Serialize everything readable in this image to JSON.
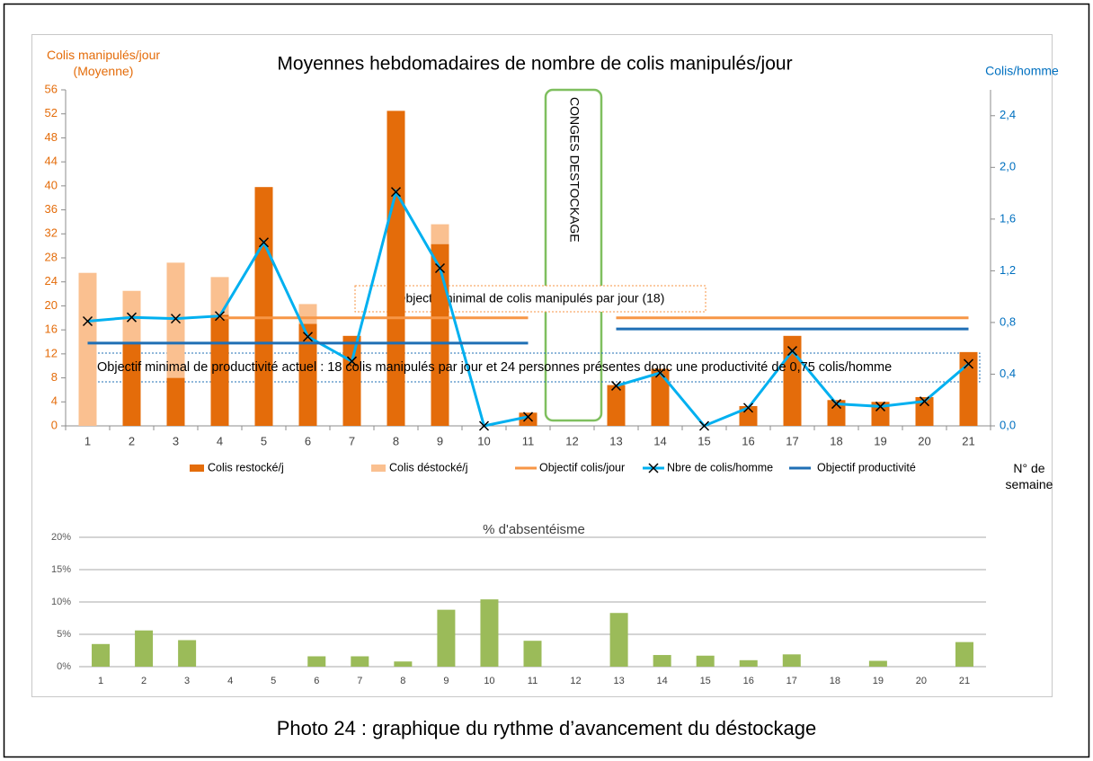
{
  "chart_data": [
    {
      "type": "bar",
      "title": "Moyennes hebdomadaires de nombre de colis manipulés/jour",
      "ylabel": "Colis manipulés/jour (Moyenne)",
      "y2label": "Colis/homme",
      "xlabel": "N° de semaine",
      "ytick_color": "#e46c0a",
      "y2tick_color": "#0070c0",
      "categories": [
        "1",
        "2",
        "3",
        "4",
        "5",
        "6",
        "7",
        "8",
        "9",
        "10",
        "11",
        "12",
        "13",
        "14",
        "15",
        "16",
        "17",
        "18",
        "19",
        "20",
        "21"
      ],
      "ylim": [
        0,
        56
      ],
      "yticks": [
        0,
        4,
        8,
        12,
        16,
        20,
        24,
        28,
        32,
        36,
        40,
        44,
        48,
        52,
        56
      ],
      "y2lim": [
        0,
        2.6
      ],
      "y2ticks": [
        {
          "value": 0,
          "label": "0,0"
        },
        {
          "value": 0.4,
          "label": "0,4"
        },
        {
          "value": 0.8,
          "label": "0,8"
        },
        {
          "value": 1.2,
          "label": "1,2"
        },
        {
          "value": 1.6,
          "label": "1,6"
        },
        {
          "value": 2.0,
          "label": "2,0"
        },
        {
          "value": 2.4,
          "label": "2,4"
        }
      ],
      "series": [
        {
          "name": "Colis restocké/j",
          "type": "bar",
          "color": "#e46c0a",
          "values": [
            0,
            14,
            8,
            18.5,
            39.8,
            17,
            15,
            52.5,
            30.3,
            0,
            2.2,
            null,
            6.8,
            9.5,
            0,
            3.3,
            15,
            4.3,
            4,
            4.8,
            12.3
          ]
        },
        {
          "name": "Colis déstocké/j",
          "type": "bar",
          "color": "#fac090",
          "values": [
            25.5,
            8.5,
            19.2,
            6.3,
            0,
            3.3,
            0,
            0,
            3.3,
            0,
            0,
            null,
            0,
            0,
            0,
            0,
            0,
            0,
            0,
            0,
            0
          ]
        },
        {
          "name": "Objectif colis/jour",
          "type": "line",
          "color": "#f79646",
          "values": [
            null,
            null,
            null,
            18,
            18,
            18,
            18,
            18,
            18,
            18,
            18,
            null,
            18,
            18,
            18,
            18,
            18,
            18,
            18,
            18,
            18
          ]
        },
        {
          "name": "Nbre de colis/homme",
          "type": "line",
          "axis": "y2",
          "color": "#00b0f0",
          "marker": "x",
          "values": [
            0.81,
            0.84,
            0.83,
            0.85,
            1.42,
            0.69,
            0.5,
            1.81,
            1.22,
            0,
            0.07,
            null,
            0.31,
            0.41,
            0,
            0.14,
            0.58,
            0.17,
            0.15,
            0.19,
            0.48
          ]
        },
        {
          "name": "Objectif productivité",
          "type": "line",
          "axis": "y2",
          "color": "#1f6fb5",
          "values": [
            0.64,
            0.64,
            0.64,
            0.64,
            0.64,
            0.64,
            0.64,
            0.64,
            0.64,
            0.64,
            0.64,
            null,
            0.75,
            0.75,
            0.75,
            0.75,
            0.75,
            0.75,
            0.75,
            0.75,
            0.75
          ]
        }
      ],
      "annotations": [
        "Objectif minimal de colis manipulés par jour (18)",
        "Objectif minimal de productivité actuel : 18 colis manipulés par jour et 24 personnes présentes donc une productivité de 0,75 colis/homme",
        "CONGES DESTOCKAGE"
      ]
    },
    {
      "type": "bar",
      "title": "% d'absentéisme",
      "categories": [
        "1",
        "2",
        "3",
        "4",
        "5",
        "6",
        "7",
        "8",
        "9",
        "10",
        "11",
        "12",
        "13",
        "14",
        "15",
        "16",
        "17",
        "18",
        "19",
        "20",
        "21"
      ],
      "values": [
        3.5,
        5.6,
        4.1,
        0,
        0,
        1.6,
        1.6,
        0.8,
        8.8,
        10.4,
        4.0,
        0,
        8.3,
        1.8,
        1.7,
        1.0,
        1.9,
        0,
        0.9,
        0,
        3.8
      ],
      "color": "#9bbb59",
      "ylim": [
        0,
        20
      ],
      "yticks": [
        {
          "value": 0,
          "label": "0%"
        },
        {
          "value": 5,
          "label": "5%"
        },
        {
          "value": 10,
          "label": "10%"
        },
        {
          "value": 15,
          "label": "15%"
        },
        {
          "value": 20,
          "label": "20%"
        }
      ],
      "grid": true
    }
  ],
  "caption": "Photo 24 : graphique du rythme d’avancement du déstockage"
}
